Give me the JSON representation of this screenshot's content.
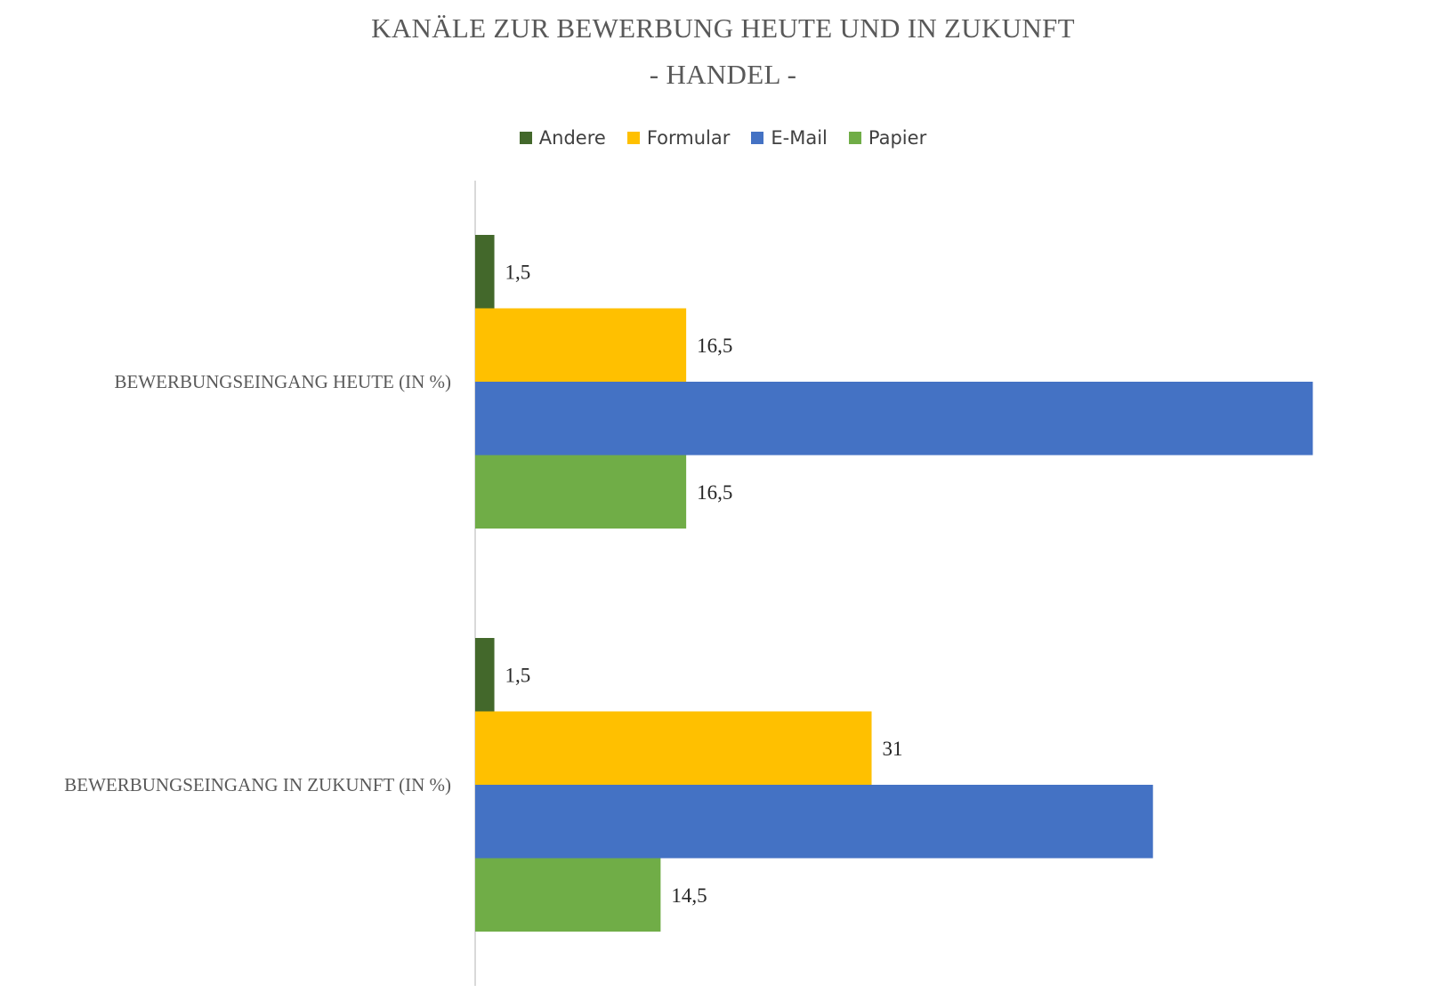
{
  "chart_data": {
    "type": "bar",
    "orientation": "horizontal",
    "title": "KANÄLE ZUR BEWERBUNG HEUTE UND IN ZUKUNFT",
    "subtitle": "- HANDEL -",
    "categories": [
      "BEWERBUNGSEINGANG HEUTE (IN %)",
      "BEWERBUNGSEINGANG IN ZUKUNFT (IN %)"
    ],
    "series": [
      {
        "name": "Andere",
        "color": "#43682b",
        "values": [
          1.5,
          1.5
        ],
        "labels": [
          "1,5",
          "1,5"
        ]
      },
      {
        "name": "Formular",
        "color": "#ffc000",
        "values": [
          16.5,
          31
        ],
        "labels": [
          "16,5",
          "31"
        ]
      },
      {
        "name": "E-Mail",
        "color": "#4472c4",
        "values": [
          65.5,
          53
        ],
        "labels": [
          "",
          ""
        ]
      },
      {
        "name": "Papier",
        "color": "#70ad47",
        "values": [
          16.5,
          14.5
        ],
        "labels": [
          "16,5",
          "14,5"
        ]
      }
    ],
    "legend_position": "top",
    "grid": false,
    "xlim": [
      0,
      70
    ]
  }
}
